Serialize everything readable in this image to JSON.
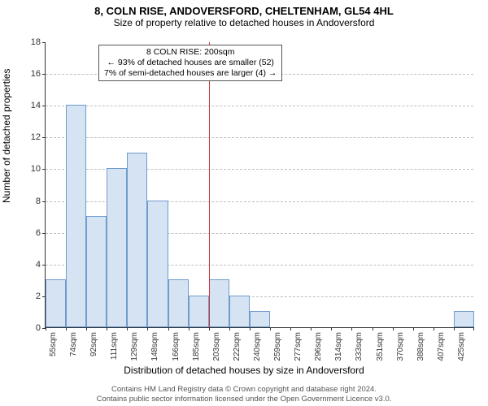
{
  "chart": {
    "type": "histogram",
    "title": "8, COLN RISE, ANDOVERSFORD, CHELTENHAM, GL54 4HL",
    "subtitle": "Size of property relative to detached houses in Andoversford",
    "ylabel": "Number of detached properties",
    "xlabel": "Distribution of detached houses by size in Andoversford",
    "background_color": "#ffffff",
    "bar_fill": "#d5e3f2",
    "bar_border": "#6f9ccd",
    "grid_color": "#bfbfbf",
    "axis_color": "#333333",
    "marker_line_color": "#cc3333",
    "y": {
      "min": 0,
      "max": 18,
      "step": 2
    },
    "x_labels": [
      "55sqm",
      "74sqm",
      "92sqm",
      "111sqm",
      "129sqm",
      "148sqm",
      "166sqm",
      "185sqm",
      "203sqm",
      "222sqm",
      "240sqm",
      "259sqm",
      "277sqm",
      "296sqm",
      "314sqm",
      "333sqm",
      "351sqm",
      "370sqm",
      "388sqm",
      "407sqm",
      "425sqm"
    ],
    "values": [
      3,
      14,
      7,
      10,
      11,
      8,
      3,
      2,
      3,
      2,
      1,
      0,
      0,
      0,
      0,
      0,
      0,
      0,
      0,
      0,
      1
    ],
    "marker_index": 8,
    "annotation": {
      "line1": "8 COLN RISE: 200sqm",
      "line2": "← 93% of detached houses are smaller (52)",
      "line3": "7% of semi-detached houses are larger (4) →"
    },
    "footer": {
      "line1": "Contains HM Land Registry data © Crown copyright and database right 2024.",
      "line2": "Contains public sector information licensed under the Open Government Licence v3.0."
    }
  }
}
